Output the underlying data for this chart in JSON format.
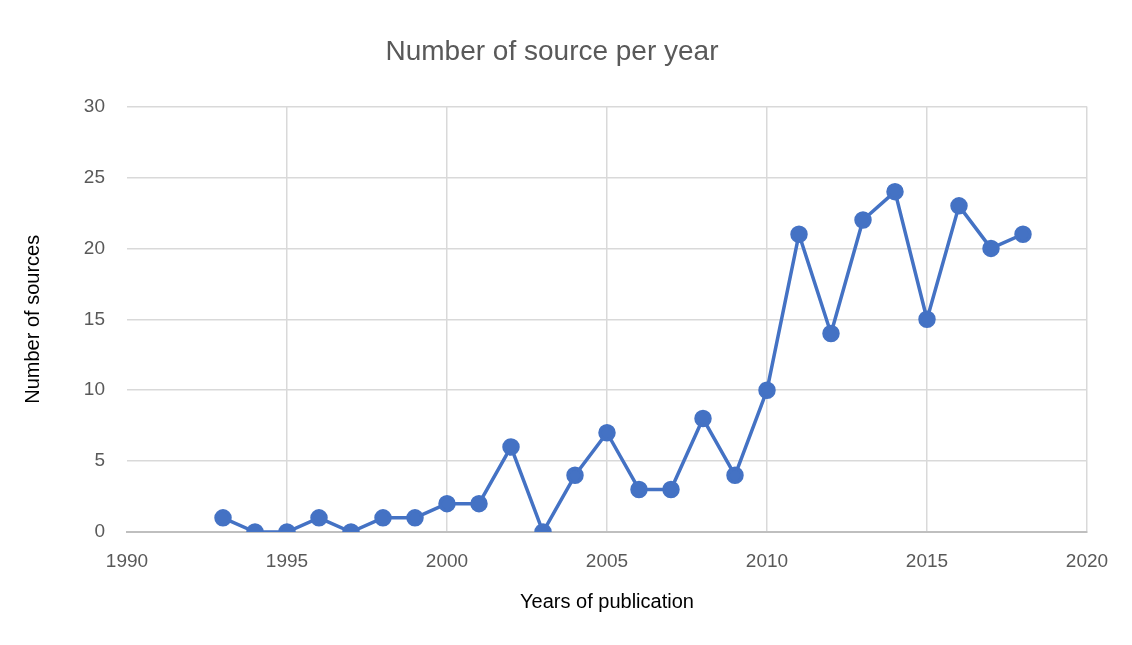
{
  "chart_data": {
    "type": "line",
    "title": "Number of source per year",
    "xlabel": "Years of publication",
    "ylabel": "Number of sources",
    "x": [
      1993,
      1994,
      1995,
      1996,
      1997,
      1998,
      1999,
      2000,
      2001,
      2002,
      2003,
      2004,
      2005,
      2006,
      2007,
      2008,
      2009,
      2010,
      2011,
      2012,
      2013,
      2014,
      2015,
      2016,
      2017,
      2018
    ],
    "values": [
      1,
      0,
      0,
      1,
      0,
      1,
      1,
      2,
      2,
      6,
      0,
      4,
      7,
      3,
      3,
      8,
      4,
      10,
      21,
      14,
      22,
      24,
      15,
      23,
      20,
      21
    ],
    "color": "#4472c4",
    "xlim": [
      1990,
      2020
    ],
    "xticks": [
      1990,
      1995,
      2000,
      2005,
      2010,
      2015,
      2020
    ],
    "ylim": [
      0,
      30
    ],
    "yticks": [
      0,
      5,
      10,
      15,
      20,
      25,
      30
    ],
    "grid": true,
    "marker": "circle",
    "line_style": "solid"
  }
}
